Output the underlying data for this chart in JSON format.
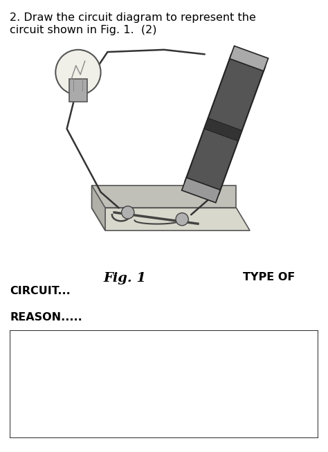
{
  "title_line1": "2. Draw the circuit diagram to represent the",
  "title_line2": "circuit shown in Fig. 1.  (2)",
  "fig_label": "Fig. 1",
  "type_label": "TYPE OF",
  "circuit_label": "CIRCUIT...",
  "reason_label": "REASON.....",
  "background_color": "#ffffff",
  "text_color": "#000000",
  "title_fontsize": 11.5,
  "fig_label_fontsize": 14,
  "label_fontsize": 11.5,
  "reason_fontsize": 11.5
}
